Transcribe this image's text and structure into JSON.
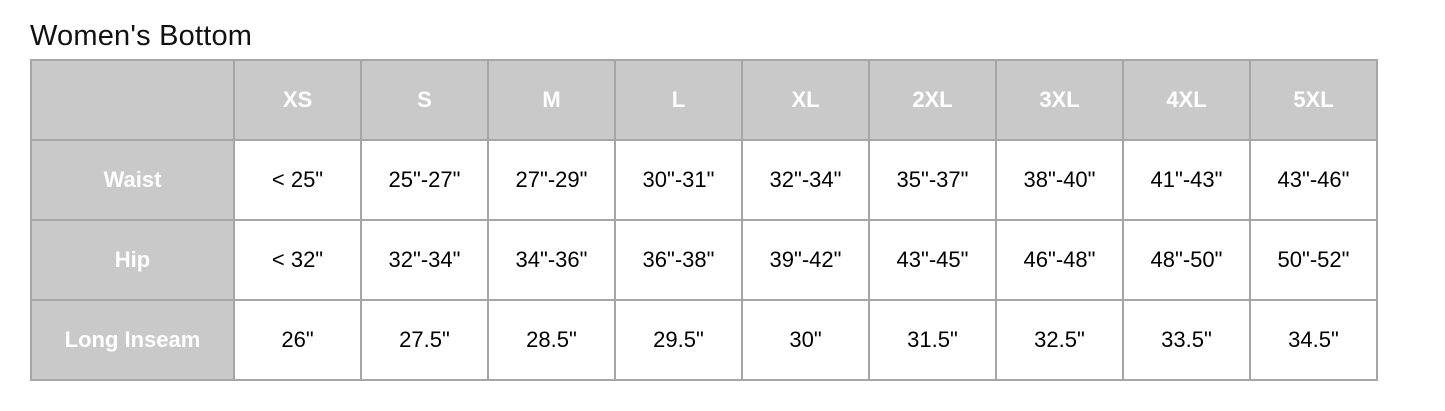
{
  "page": {
    "title": "Women's Bottom"
  },
  "table": {
    "corner_label": "",
    "columns": [
      "XS",
      "S",
      "M",
      "L",
      "XL",
      "2XL",
      "3XL",
      "4XL",
      "5XL"
    ],
    "rows": [
      {
        "label": "Waist",
        "values": [
          "< 25\"",
          "25\"-27\"",
          "27\"-29\"",
          "30\"-31\"",
          "32\"-34\"",
          "35\"-37\"",
          "38\"-40\"",
          "41\"-43\"",
          "43\"-46\""
        ]
      },
      {
        "label": "Hip",
        "values": [
          "< 32\"",
          "32\"-34\"",
          "34\"-36\"",
          "36\"-38\"",
          "39\"-42\"",
          "43\"-45\"",
          "46\"-48\"",
          "48\"-50\"",
          "50\"-52\""
        ]
      },
      {
        "label": "Long Inseam",
        "values": [
          "26\"",
          "27.5\"",
          "28.5\"",
          "29.5\"",
          "30\"",
          "31.5\"",
          "32.5\"",
          "33.5\"",
          "34.5\""
        ]
      }
    ],
    "colors": {
      "header_bg": "#c9c9c9",
      "header_text": "#ffffff",
      "border": "#a6a6a6",
      "cell_bg": "#ffffff",
      "cell_text": "#000000"
    }
  },
  "chart_data": {
    "type": "table",
    "title": "Women's Bottom",
    "columns": [
      "",
      "XS",
      "S",
      "M",
      "L",
      "XL",
      "2XL",
      "3XL",
      "4XL",
      "5XL"
    ],
    "rows": [
      [
        "Waist",
        "< 25\"",
        "25\"-27\"",
        "27\"-29\"",
        "30\"-31\"",
        "32\"-34\"",
        "35\"-37\"",
        "38\"-40\"",
        "41\"-43\"",
        "43\"-46\""
      ],
      [
        "Hip",
        "< 32\"",
        "32\"-34\"",
        "34\"-36\"",
        "36\"-38\"",
        "39\"-42\"",
        "43\"-45\"",
        "46\"-48\"",
        "48\"-50\"",
        "50\"-52\""
      ],
      [
        "Long Inseam",
        "26\"",
        "27.5\"",
        "28.5\"",
        "29.5\"",
        "30\"",
        "31.5\"",
        "32.5\"",
        "33.5\"",
        "34.5\""
      ]
    ]
  }
}
